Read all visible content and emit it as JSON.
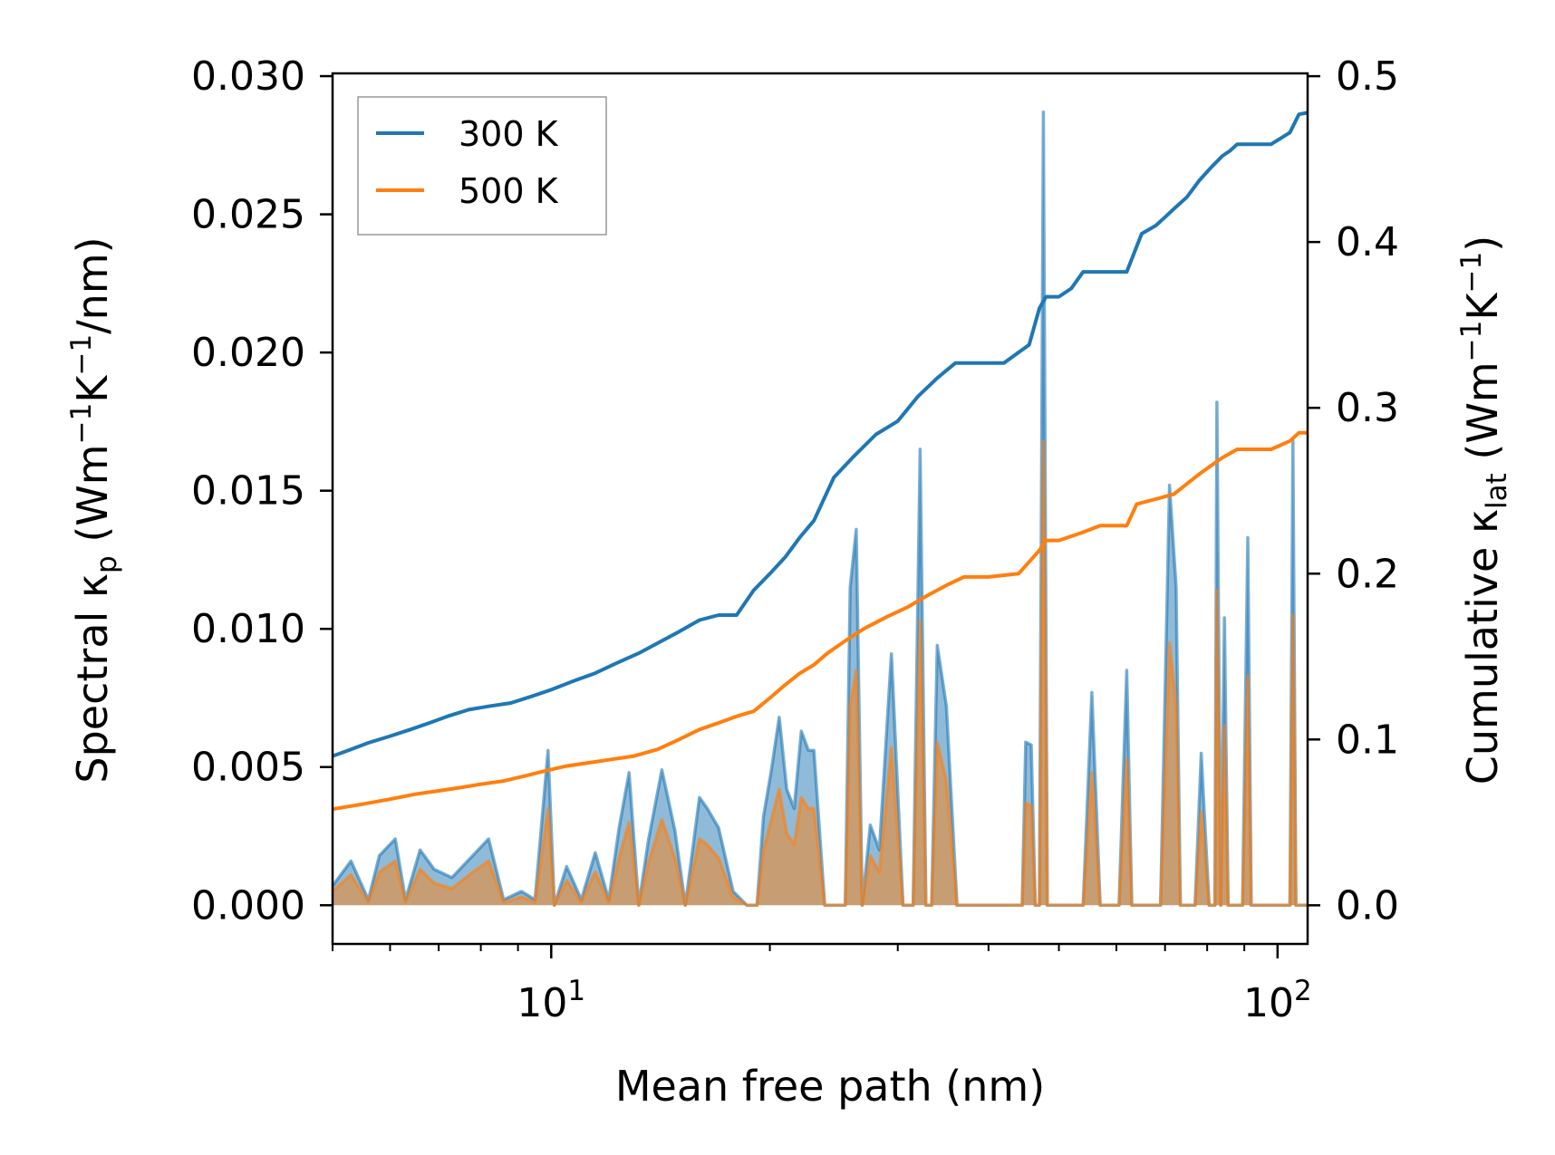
{
  "chart_data": {
    "type": "line",
    "xscale": "log",
    "xlim": [
      5,
      110
    ],
    "x_ticks": [
      {
        "value": 10,
        "base": "10",
        "exp": "1"
      },
      {
        "value": 100,
        "base": "10",
        "exp": "2"
      }
    ],
    "xlabel": "Mean free path (nm)",
    "left_axis": {
      "label": {
        "pre": "Spectral κ",
        "sub": "p",
        "mid1": " (Wm",
        "sup1": "−1",
        "mid2": "K",
        "sup2": "−1",
        "post": "/nm)"
      },
      "ylim": [
        -0.0014,
        0.0301
      ],
      "ticks": [
        "0.000",
        "0.005",
        "0.010",
        "0.015",
        "0.020",
        "0.025",
        "0.030"
      ],
      "tick_values": [
        0,
        0.005,
        0.01,
        0.015,
        0.02,
        0.025,
        0.03
      ]
    },
    "right_axis": {
      "label": {
        "pre": "Cumulative κ",
        "sub": "lat",
        "mid1": " (Wm",
        "sup1": "−1",
        "mid2": "K",
        "sup2": "−1",
        "post": ")"
      },
      "ylim": [
        -0.0233,
        0.5017
      ],
      "ticks": [
        "0.0",
        "0.1",
        "0.2",
        "0.3",
        "0.4",
        "0.5"
      ],
      "tick_values": [
        0,
        0.1,
        0.2,
        0.3,
        0.4,
        0.5
      ]
    },
    "legend": {
      "position": "upper-left",
      "entries": [
        {
          "label": "300 K",
          "color": "#1f77b4"
        },
        {
          "label": "500 K",
          "color": "#ff7f0e"
        }
      ]
    },
    "series": [
      {
        "name": "300 K",
        "color": "#1f77b4",
        "cumulative": {
          "x": [
            5.0,
            5.3,
            5.6,
            6.0,
            6.4,
            6.8,
            7.2,
            7.7,
            8.2,
            8.8,
            9.4,
            10.0,
            10.7,
            11.5,
            12.3,
            13.2,
            14.0,
            15.0,
            16.0,
            17.0,
            18.0,
            19.0,
            20.0,
            21.0,
            22.0,
            23.0,
            24.5,
            26.0,
            28.0,
            30.0,
            32.0,
            34.0,
            36.0,
            38.0,
            42.0,
            45.5,
            47.0,
            48.0,
            50.0,
            52.0,
            54.0,
            57.0,
            62.0,
            65.0,
            68.0,
            70.0,
            72.0,
            75.0,
            78.0,
            81.0,
            84.0,
            86.0,
            88.0,
            92.0,
            98.0,
            104.0,
            107.0,
            110.0
          ],
          "y": [
            0.09,
            0.094,
            0.098,
            0.102,
            0.106,
            0.11,
            0.114,
            0.118,
            0.12,
            0.122,
            0.126,
            0.13,
            0.135,
            0.14,
            0.146,
            0.152,
            0.158,
            0.165,
            0.172,
            0.175,
            0.175,
            0.19,
            0.2,
            0.21,
            0.222,
            0.232,
            0.258,
            0.27,
            0.284,
            0.292,
            0.307,
            0.318,
            0.327,
            0.327,
            0.327,
            0.338,
            0.36,
            0.367,
            0.367,
            0.372,
            0.382,
            0.382,
            0.382,
            0.405,
            0.41,
            0.415,
            0.42,
            0.427,
            0.437,
            0.445,
            0.452,
            0.455,
            0.459,
            0.459,
            0.459,
            0.466,
            0.477,
            0.478
          ]
        },
        "spectral": {
          "x": [
            5.0,
            5.3,
            5.6,
            5.8,
            6.1,
            6.3,
            6.6,
            6.9,
            7.3,
            7.8,
            8.2,
            8.6,
            9.1,
            9.5,
            9.9,
            10.1,
            10.5,
            11.0,
            11.5,
            12.0,
            12.4,
            12.8,
            13.2,
            13.6,
            14.2,
            14.8,
            15.3,
            16.0,
            16.4,
            17.0,
            17.8,
            18.6,
            19.2,
            19.6,
            20.1,
            20.6,
            21.1,
            21.6,
            22.1,
            22.6,
            23.0,
            23.8,
            24.6,
            25.4,
            25.8,
            26.3,
            26.8,
            27.5,
            28.3,
            29.4,
            30.5,
            31.5,
            32.2,
            32.8,
            33.4,
            34.0,
            35.0,
            36.2,
            37.2,
            38.0,
            41.0,
            44.5,
            45.0,
            45.8,
            46.4,
            47.0,
            47.6,
            48.2,
            49.0,
            50.5,
            52.0,
            53.0,
            54.0,
            55.5,
            57.0,
            60.5,
            62.0,
            63.0,
            64.0,
            66.0,
            69.0,
            71.0,
            72.5,
            73.5,
            75.0,
            77.0,
            78.5,
            80.5,
            81.5,
            82.0,
            82.5,
            83.5,
            84.5,
            85.5,
            86.5,
            88.0,
            89.5,
            91.0,
            92.0,
            93.0,
            95.0,
            98.0,
            103.0,
            104.0,
            105.0,
            106.0,
            107.0,
            108.0,
            110.0
          ],
          "y": [
            0.0007,
            0.0016,
            0.0002,
            0.0018,
            0.0024,
            0.0002,
            0.002,
            0.0013,
            0.001,
            0.0018,
            0.0024,
            0.0002,
            0.0005,
            0.0002,
            0.0056,
            0.0,
            0.0014,
            0.0002,
            0.0019,
            0.0002,
            0.0028,
            0.0048,
            0.0,
            0.0023,
            0.0049,
            0.0027,
            0.0,
            0.0039,
            0.0035,
            0.0028,
            0.0005,
            0.0,
            0.0,
            0.0032,
            0.0049,
            0.0068,
            0.0042,
            0.0035,
            0.0063,
            0.0056,
            0.0056,
            0.0,
            0.0,
            0.0,
            0.0115,
            0.0136,
            0.0,
            0.0029,
            0.002,
            0.0091,
            0.0,
            0.0,
            0.0165,
            0.0,
            0.0,
            0.0094,
            0.0072,
            0.0,
            0.0,
            0.0,
            0.0,
            0.0,
            0.0059,
            0.0058,
            0.0,
            0.0,
            0.0287,
            0.0,
            0.0,
            0.0,
            0.0,
            0.0,
            0.0,
            0.0077,
            0.0,
            0.0,
            0.0085,
            0.0,
            0.0,
            0.0,
            0.0,
            0.0152,
            0.0115,
            0.0,
            0.0,
            0.0,
            0.0055,
            0.0,
            0.0,
            0.0,
            0.0182,
            0.0,
            0.0104,
            0.0,
            0.0,
            0.0,
            0.0,
            0.0133,
            0.0,
            0.0,
            0.0,
            0.0,
            0.0,
            0.0,
            0.0168,
            0.0,
            0.0,
            0.0,
            0.0
          ]
        }
      },
      {
        "name": "500 K",
        "color": "#ff7f0e",
        "cumulative": {
          "x": [
            5.0,
            5.5,
            6.0,
            6.5,
            7.0,
            7.5,
            8.0,
            8.6,
            9.2,
            9.8,
            10.5,
            11.3,
            12.1,
            13.0,
            14.0,
            15.0,
            16.0,
            17.0,
            18.0,
            19.0,
            20.0,
            21.0,
            22.0,
            23.0,
            24.0,
            25.5,
            27.0,
            29.0,
            31.0,
            33.0,
            35.0,
            37.0,
            40.0,
            44.0,
            47.0,
            48.0,
            50.0,
            54.0,
            57.0,
            62.0,
            64.0,
            68.0,
            72.0,
            78.0,
            84.0,
            88.0,
            92.0,
            98.0,
            104.0,
            107.0,
            110.0
          ],
          "y": [
            0.058,
            0.061,
            0.064,
            0.067,
            0.069,
            0.071,
            0.073,
            0.075,
            0.078,
            0.081,
            0.084,
            0.086,
            0.088,
            0.09,
            0.094,
            0.1,
            0.106,
            0.11,
            0.114,
            0.117,
            0.125,
            0.133,
            0.14,
            0.145,
            0.152,
            0.16,
            0.167,
            0.174,
            0.18,
            0.187,
            0.193,
            0.198,
            0.198,
            0.2,
            0.214,
            0.22,
            0.22,
            0.225,
            0.229,
            0.229,
            0.242,
            0.245,
            0.248,
            0.26,
            0.27,
            0.275,
            0.275,
            0.275,
            0.28,
            0.285,
            0.285
          ]
        },
        "spectral": {
          "x": [
            5.0,
            5.3,
            5.6,
            5.8,
            6.1,
            6.3,
            6.6,
            6.9,
            7.3,
            7.8,
            8.2,
            8.6,
            9.1,
            9.5,
            9.9,
            10.1,
            10.5,
            11.0,
            11.5,
            12.0,
            12.4,
            12.8,
            13.2,
            13.6,
            14.2,
            14.8,
            15.3,
            16.0,
            16.4,
            17.0,
            17.8,
            18.6,
            19.2,
            19.6,
            20.1,
            20.6,
            21.1,
            21.6,
            22.1,
            22.6,
            23.0,
            23.8,
            24.6,
            25.4,
            25.8,
            26.3,
            26.8,
            27.5,
            28.3,
            29.4,
            30.5,
            31.5,
            32.2,
            32.8,
            33.4,
            34.0,
            35.0,
            36.2,
            37.2,
            38.0,
            41.0,
            44.5,
            45.0,
            45.8,
            46.4,
            47.0,
            47.6,
            48.2,
            49.0,
            50.5,
            52.0,
            53.0,
            54.0,
            55.5,
            57.0,
            60.5,
            62.0,
            63.0,
            64.0,
            66.0,
            69.0,
            71.0,
            72.5,
            73.5,
            75.0,
            77.0,
            78.5,
            80.5,
            81.5,
            82.0,
            82.5,
            83.5,
            84.5,
            85.5,
            86.5,
            88.0,
            89.5,
            91.0,
            92.0,
            93.0,
            95.0,
            98.0,
            103.0,
            104.0,
            105.0,
            106.0,
            107.0,
            108.0,
            110.0
          ],
          "y": [
            0.0005,
            0.0011,
            0.0001,
            0.0012,
            0.0016,
            0.0001,
            0.0013,
            0.0008,
            0.0006,
            0.0012,
            0.0016,
            0.0001,
            0.0003,
            0.0001,
            0.0035,
            0.0,
            0.0009,
            0.0001,
            0.0012,
            0.0001,
            0.0017,
            0.003,
            0.0,
            0.0015,
            0.0031,
            0.0017,
            0.0,
            0.0024,
            0.0022,
            0.0017,
            0.0003,
            0.0,
            0.0,
            0.002,
            0.0031,
            0.0042,
            0.0026,
            0.0022,
            0.0039,
            0.0035,
            0.0035,
            0.0,
            0.0,
            0.0,
            0.0072,
            0.0085,
            0.0,
            0.0018,
            0.0012,
            0.0057,
            0.0,
            0.0,
            0.0103,
            0.0,
            0.0,
            0.0059,
            0.0045,
            0.0,
            0.0,
            0.0,
            0.0,
            0.0,
            0.0037,
            0.0036,
            0.0,
            0.0,
            0.0168,
            0.0,
            0.0,
            0.0,
            0.0,
            0.0,
            0.0,
            0.0048,
            0.0,
            0.0,
            0.0053,
            0.0,
            0.0,
            0.0,
            0.0,
            0.0095,
            0.0072,
            0.0,
            0.0,
            0.0,
            0.0034,
            0.0,
            0.0,
            0.0,
            0.0114,
            0.0,
            0.0065,
            0.0,
            0.0,
            0.0,
            0.0,
            0.0083,
            0.0,
            0.0,
            0.0,
            0.0,
            0.0,
            0.0,
            0.0105,
            0.0,
            0.0,
            0.0,
            0.0
          ]
        }
      }
    ]
  }
}
